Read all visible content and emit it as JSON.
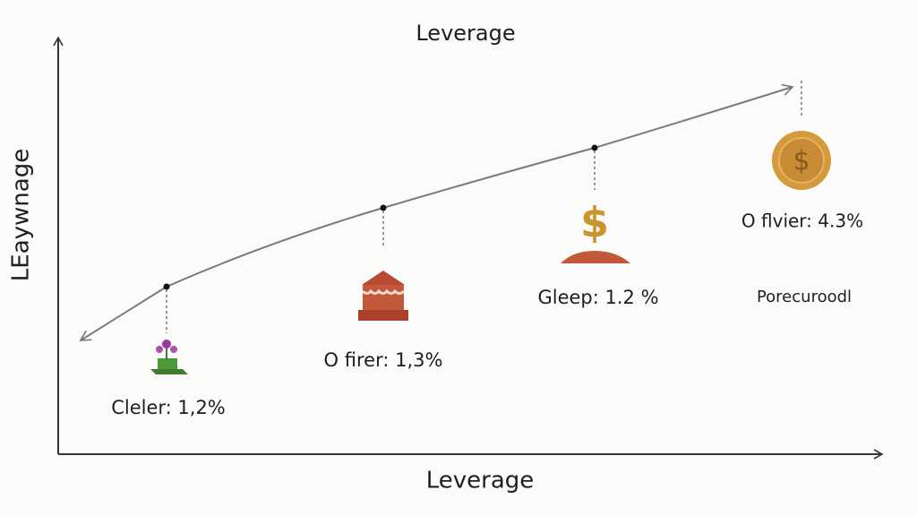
{
  "header": {
    "title": "Leverage"
  },
  "axes": {
    "x_label": "Leverage",
    "y_label": "LEaywnage"
  },
  "nodes": [
    {
      "label": "Cleler: 1,2%"
    },
    {
      "label": "O firer: 1,3%"
    },
    {
      "label": "Gleep: 1.2 %"
    },
    {
      "label": "O flvier: 4.3%"
    }
  ],
  "note": "Porecuroodl"
}
